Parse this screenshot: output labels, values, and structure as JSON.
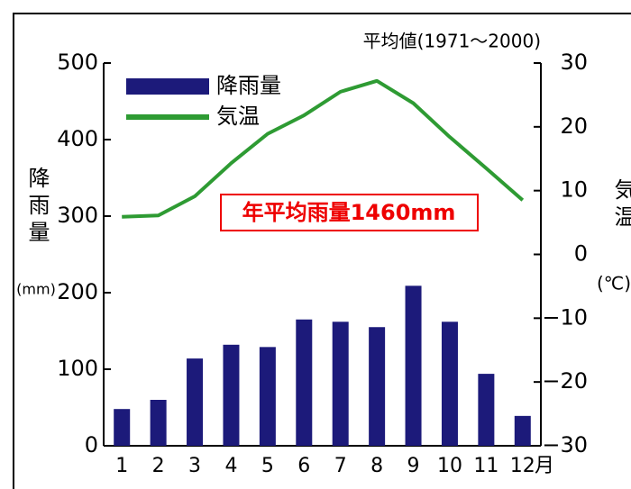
{
  "chart_data": {
    "type": "bar",
    "title": "平均値(1971～2000)",
    "ylabel": "降雨量",
    "ylabel_unit": "(mm)",
    "y2label": "気温",
    "y2label_unit": "(℃)",
    "xlabel": "月",
    "annotation": "年平均雨量1460mm",
    "categories": [
      "1",
      "2",
      "3",
      "4",
      "5",
      "6",
      "7",
      "8",
      "9",
      "10",
      "11",
      "12"
    ],
    "series": [
      {
        "name": "降雨量",
        "type": "bar",
        "color": "#1c1a7a",
        "values": [
          48,
          60,
          114,
          132,
          129,
          165,
          162,
          155,
          209,
          162,
          94,
          39
        ]
      },
      {
        "name": "気温",
        "type": "line",
        "axis": "y2",
        "color": "#2e9b33",
        "values": [
          5.9,
          6.1,
          9.1,
          14.3,
          18.9,
          21.8,
          25.5,
          27.2,
          23.7,
          18.4,
          13.5,
          8.5
        ]
      }
    ],
    "ylim": [
      0,
      500
    ],
    "yticks": [
      0,
      100,
      200,
      300,
      400,
      500
    ],
    "y2lim": [
      -30,
      30
    ],
    "y2ticks": [
      {
        "value": -30,
        "label": "−30"
      },
      {
        "value": -20,
        "label": "−20"
      },
      {
        "value": -10,
        "label": "−10"
      },
      0,
      10,
      20,
      30
    ],
    "legend": "upper left"
  }
}
